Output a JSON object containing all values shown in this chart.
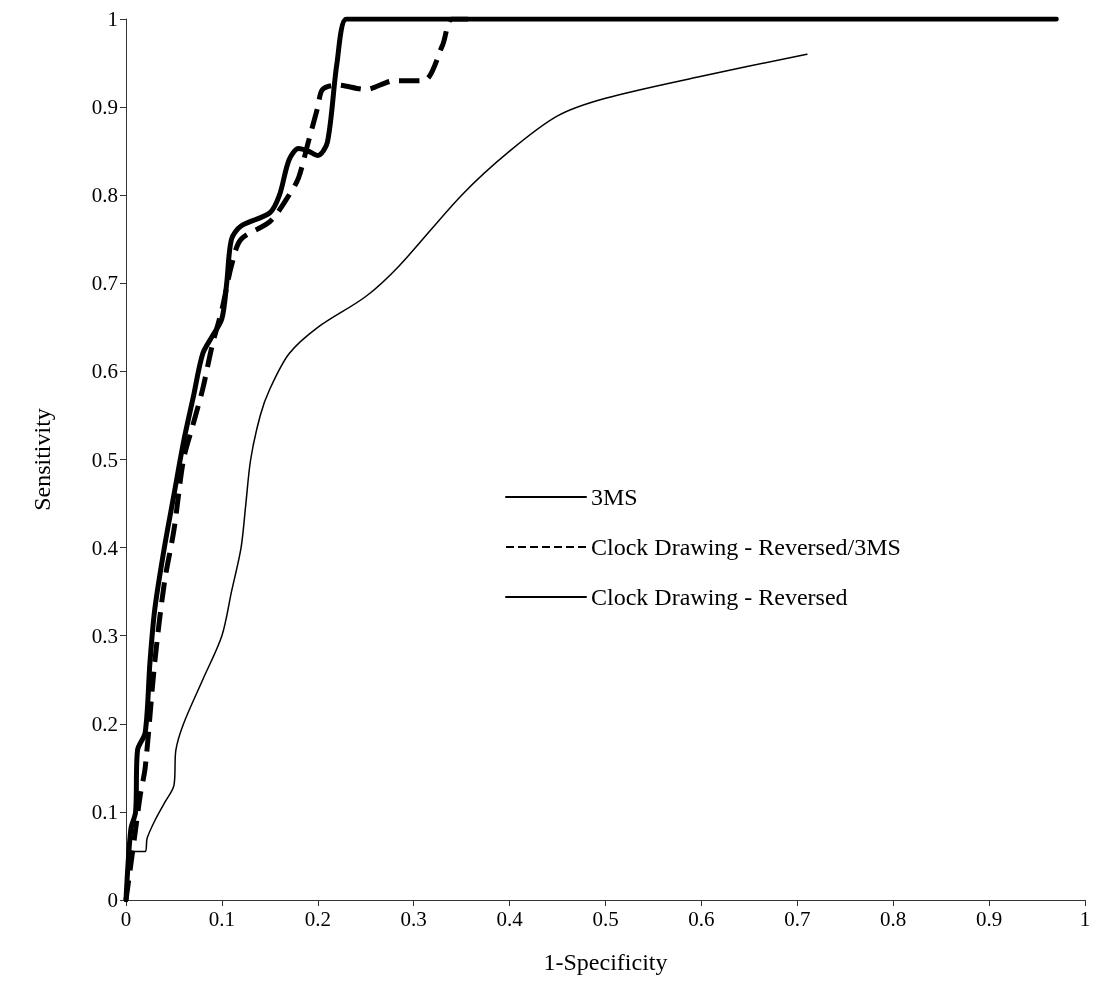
{
  "chart_data": {
    "type": "line",
    "xlabel": "1-Specificity",
    "ylabel": "Sensitivity",
    "xlim": [
      0,
      1
    ],
    "xticks": [
      0,
      0.1,
      0.2,
      0.3,
      0.4,
      0.5,
      0.6,
      0.7,
      0.8,
      0.9,
      1
    ],
    "ylim": [
      0,
      1
    ],
    "yticks": [
      0,
      0.1,
      0.2,
      0.3,
      0.4,
      0.5,
      0.6,
      0.7,
      0.8,
      0.9,
      1
    ],
    "grid": false,
    "legend": "right",
    "marker": "none",
    "series": [
      {
        "name": "3MS",
        "color": "#000000",
        "line_style": "solid",
        "x": [
          0,
          0.005,
          0.01,
          0.012,
          0.02,
          0.025,
          0.03,
          0.04,
          0.05,
          0.06,
          0.07,
          0.08,
          0.09,
          0.1,
          0.105,
          0.11,
          0.12,
          0.15,
          0.16,
          0.17,
          0.18,
          0.19,
          0.2,
          0.21,
          0.22,
          0.23,
          0.25,
          0.26,
          0.97
        ],
        "values": [
          0,
          0.08,
          0.1,
          0.17,
          0.19,
          0.27,
          0.33,
          0.4,
          0.46,
          0.52,
          0.57,
          0.62,
          0.64,
          0.66,
          0.7,
          0.75,
          0.765,
          0.78,
          0.8,
          0.84,
          0.853,
          0.85,
          0.845,
          0.86,
          0.95,
          1.0,
          1.0,
          1.0,
          1.0
        ]
      },
      {
        "name": "Clock Drawing - Reversed/3MS",
        "color": "#000000",
        "line_style": "dashed",
        "x": [
          0,
          0.01,
          0.015,
          0.02,
          0.03,
          0.04,
          0.05,
          0.06,
          0.07,
          0.08,
          0.09,
          0.1,
          0.11,
          0.12,
          0.15,
          0.17,
          0.18,
          0.19,
          0.2,
          0.205,
          0.22,
          0.25,
          0.28,
          0.31,
          0.33,
          0.34,
          0.36
        ],
        "values": [
          0,
          0.08,
          0.12,
          0.15,
          0.27,
          0.36,
          0.42,
          0.5,
          0.54,
          0.58,
          0.63,
          0.67,
          0.72,
          0.75,
          0.77,
          0.8,
          0.82,
          0.86,
          0.9,
          0.92,
          0.925,
          0.92,
          0.93,
          0.93,
          0.97,
          1.0,
          1.0
        ]
      },
      {
        "name": "Clock Drawing - Reversed",
        "color": "#000000",
        "line_style": "solid",
        "x": [
          0,
          0.003,
          0.01,
          0.02,
          0.022,
          0.03,
          0.04,
          0.05,
          0.052,
          0.06,
          0.08,
          0.1,
          0.11,
          0.12,
          0.125,
          0.13,
          0.14,
          0.15,
          0.17,
          0.2,
          0.25,
          0.285,
          0.35,
          0.4,
          0.45,
          0.5,
          0.6,
          0.71
        ],
        "values": [
          0,
          0.04,
          0.055,
          0.055,
          0.07,
          0.09,
          0.11,
          0.13,
          0.17,
          0.2,
          0.25,
          0.3,
          0.35,
          0.4,
          0.45,
          0.5,
          0.55,
          0.58,
          0.62,
          0.65,
          0.685,
          0.72,
          0.8,
          0.85,
          0.89,
          0.91,
          0.935,
          0.96
        ]
      }
    ]
  }
}
